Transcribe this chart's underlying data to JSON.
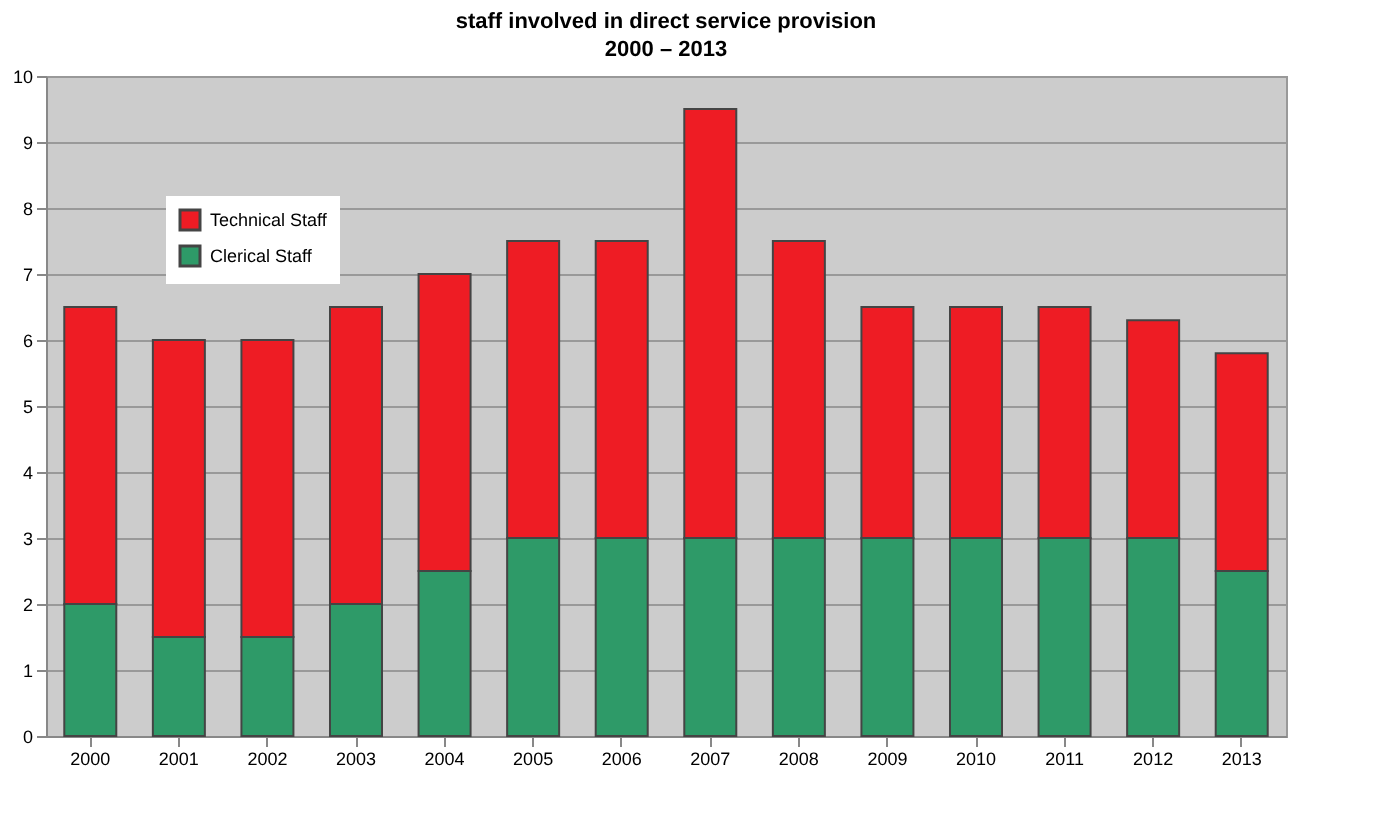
{
  "chart_data": {
    "type": "bar",
    "title": "staff involved in direct service provision",
    "subtitle": "2000 – 2013",
    "categories": [
      "2000",
      "2001",
      "2002",
      "2003",
      "2004",
      "2005",
      "2006",
      "2007",
      "2008",
      "2009",
      "2010",
      "2011",
      "2012",
      "2013"
    ],
    "stacked": true,
    "series": [
      {
        "name": "Clerical Staff",
        "color": "#2e9a68",
        "values": [
          2,
          1.5,
          1.5,
          2,
          2.5,
          3,
          3,
          3,
          3,
          3,
          3,
          3,
          3,
          2.5
        ]
      },
      {
        "name": "Technical Staff",
        "color": "#ee1c24",
        "values": [
          4.5,
          4.5,
          4.5,
          4.5,
          4.5,
          4.5,
          4.5,
          6.5,
          4.5,
          3.5,
          3.5,
          3.5,
          3.3,
          3.3
        ]
      }
    ],
    "ylim": [
      0,
      10
    ],
    "yticks": [
      0,
      1,
      2,
      3,
      4,
      5,
      6,
      7,
      8,
      9,
      10
    ],
    "grid": "y",
    "legend": "top left"
  }
}
